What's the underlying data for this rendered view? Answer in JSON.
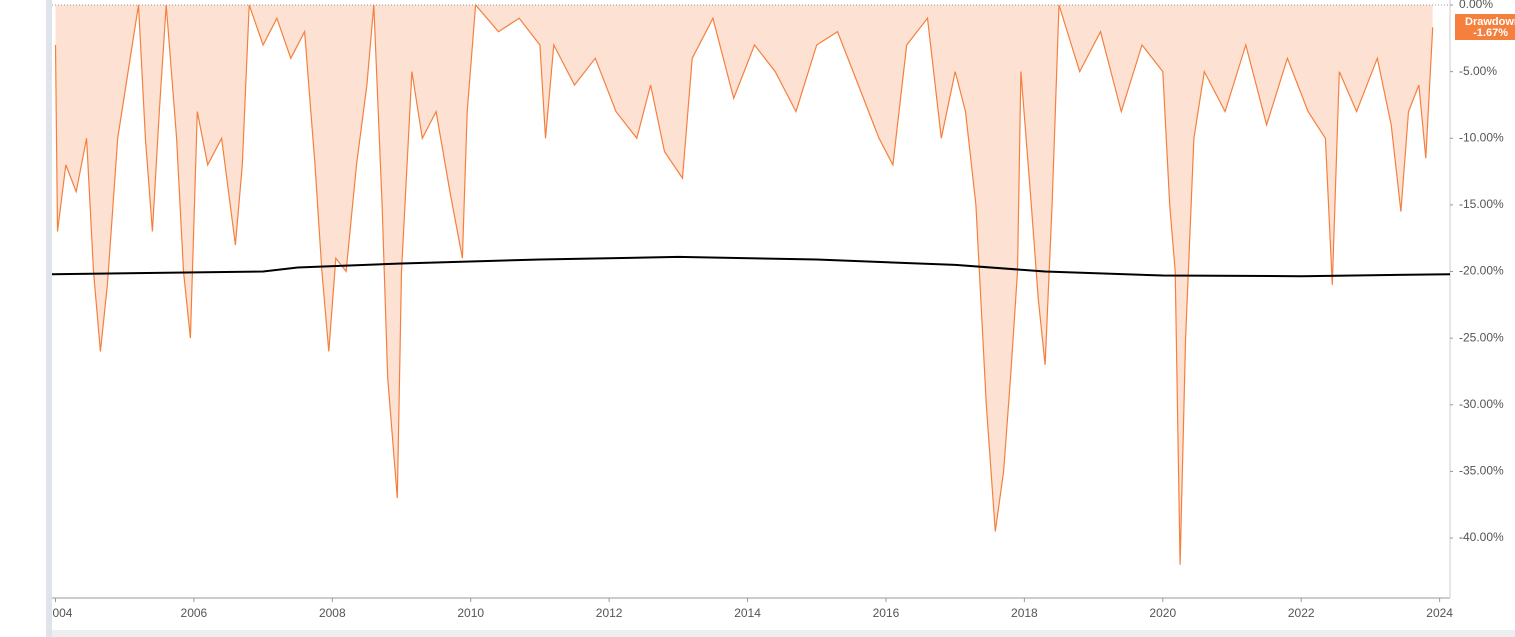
{
  "chart_data": {
    "type": "area",
    "xlim": [
      2003.95,
      2024.15
    ],
    "ylim": [
      -44.5,
      0
    ],
    "xticks": [
      {
        "value": 2004,
        "label": "004"
      },
      2006,
      2008,
      2010,
      2012,
      2014,
      2016,
      2018,
      2020,
      2022,
      2024
    ],
    "yticks": [
      {
        "value": 0,
        "label": "0.00%"
      },
      {
        "value": -5,
        "label": "-5.00%"
      },
      {
        "value": -10,
        "label": "-10.00%"
      },
      {
        "value": -15,
        "label": "-15.00%"
      },
      {
        "value": -20,
        "label": "-20.00%"
      },
      {
        "value": -25,
        "label": "-25.00%"
      },
      {
        "value": -30,
        "label": "-30.00%"
      },
      {
        "value": -35,
        "label": "-35.00%"
      },
      {
        "value": -40,
        "label": "-40.00%"
      }
    ],
    "series": [
      {
        "name": "Drawdown",
        "color": "#f5803e",
        "fill": "#fde1d3",
        "current": {
          "value": -1.67,
          "label": "-1.67%"
        },
        "x": [
          2004.0,
          2004.03,
          2004.15,
          2004.3,
          2004.45,
          2004.55,
          2004.65,
          2004.75,
          2004.9,
          2005.05,
          2005.2,
          2005.3,
          2005.4,
          2005.5,
          2005.6,
          2005.75,
          2005.85,
          2005.95,
          2006.05,
          2006.2,
          2006.4,
          2006.6,
          2006.7,
          2006.8,
          2007.0,
          2007.2,
          2007.4,
          2007.6,
          2007.75,
          2007.85,
          2007.95,
          2008.05,
          2008.2,
          2008.35,
          2008.5,
          2008.6,
          2008.72,
          2008.8,
          2008.94,
          2009.0,
          2009.15,
          2009.3,
          2009.5,
          2009.7,
          2009.88,
          2009.95,
          2010.07,
          2010.4,
          2010.7,
          2011.0,
          2011.08,
          2011.2,
          2011.5,
          2011.8,
          2012.1,
          2012.4,
          2012.6,
          2012.8,
          2013.06,
          2013.2,
          2013.5,
          2013.8,
          2014.1,
          2014.4,
          2014.7,
          2015.0,
          2015.3,
          2015.6,
          2015.9,
          2016.1,
          2016.3,
          2016.6,
          2016.8,
          2017.0,
          2017.15,
          2017.3,
          2017.45,
          2017.58,
          2017.7,
          2017.8,
          2017.9,
          2017.95,
          2018.1,
          2018.2,
          2018.3,
          2018.4,
          2018.5,
          2018.8,
          2019.1,
          2019.4,
          2019.7,
          2020.0,
          2020.1,
          2020.18,
          2020.25,
          2020.33,
          2020.45,
          2020.6,
          2020.9,
          2021.2,
          2021.5,
          2021.8,
          2022.1,
          2022.35,
          2022.45,
          2022.55,
          2022.8,
          2023.1,
          2023.3,
          2023.44,
          2023.55,
          2023.7,
          2023.8,
          2023.9
        ],
        "values": [
          -3,
          -17,
          -12,
          -14,
          -10,
          -20,
          -26,
          -21,
          -10,
          -5,
          0,
          -10,
          -17,
          -8,
          0,
          -10,
          -20,
          -25,
          -8,
          -12,
          -10,
          -18,
          -12,
          0,
          -3,
          -1,
          -4,
          -2,
          -12,
          -20,
          -26,
          -19,
          -20,
          -12,
          -6,
          0,
          -15,
          -28,
          -37,
          -20,
          -5,
          -10,
          -8,
          -14,
          -19,
          -8,
          0,
          -2,
          -1,
          -3,
          -10,
          -3,
          -6,
          -4,
          -8,
          -10,
          -6,
          -11,
          -13,
          -4,
          -1,
          -7,
          -3,
          -5,
          -8,
          -3,
          -2,
          -6,
          -10,
          -12,
          -3,
          -1,
          -10,
          -5,
          -8,
          -15,
          -30,
          -39.5,
          -35,
          -28,
          -20,
          -5,
          -15,
          -22,
          -27,
          -15,
          0,
          -5,
          -2,
          -8,
          -3,
          -5,
          -15,
          -20,
          -42,
          -25,
          -10,
          -5,
          -8,
          -3,
          -9,
          -4,
          -8,
          -10,
          -21,
          -5,
          -8,
          -4,
          -9,
          -15.5,
          -8,
          -6,
          -11.5,
          -1.67
        ]
      },
      {
        "color": "#000000",
        "x": [
          2003.95,
          2007.0,
          2007.5,
          2009.0,
          2011.0,
          2013.0,
          2015.0,
          2017.0,
          2018.3,
          2020.0,
          2022.0,
          2024.15
        ],
        "values": [
          -20.2,
          -20.0,
          -19.7,
          -19.4,
          -19.1,
          -18.9,
          -19.1,
          -19.5,
          -20.0,
          -20.3,
          -20.35,
          -20.2
        ]
      }
    ]
  }
}
